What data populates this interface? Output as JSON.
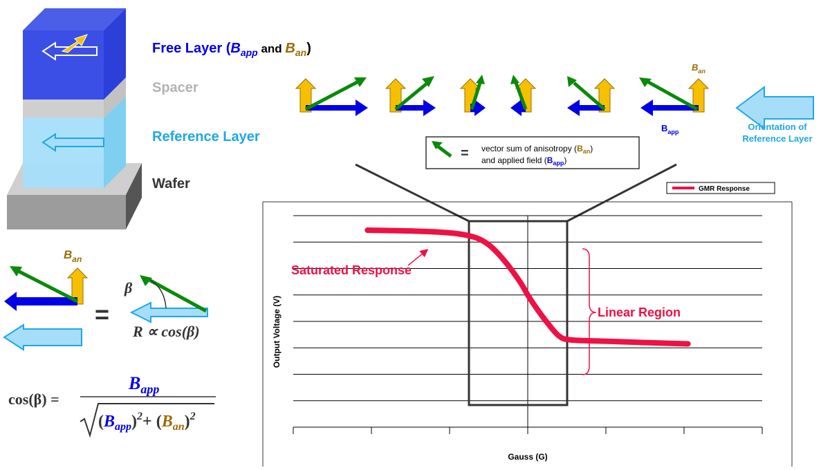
{
  "layers": {
    "free_layer_prefix": "Free Layer (",
    "free_layer_b1": "B",
    "free_layer_b1_sub": "app",
    "free_layer_and": " and ",
    "free_layer_b2": "B",
    "free_layer_b2_sub": "an",
    "free_layer_suffix": ")",
    "spacer": "Spacer",
    "reference": "Reference Layer",
    "wafer": "Wafer"
  },
  "vectors": {
    "ban_label": "B",
    "ban_sub": "an",
    "bapp_label": "B",
    "bapp_sub": "app",
    "orientation_line1": "Orientation of",
    "orientation_line2": "Reference Layer"
  },
  "legend_box": {
    "equals": "=",
    "line1": "vector sum of anisotropy (",
    "line1_b": "B",
    "line1_sub": "an",
    "line1_end": ")",
    "line2": "and applied field (",
    "line2_b": "B",
    "line2_sub": "app",
    "line2_end": ")"
  },
  "bottom_left": {
    "ban_label": "B",
    "ban_sub": "an",
    "equals": "=",
    "beta": "β",
    "resistance": "R ∝ cos(β)",
    "formula_lhs": "cos(β) =",
    "formula_num_b": "B",
    "formula_num_sub": "app",
    "formula_den_open": "(",
    "formula_den_b1": "B",
    "formula_den_sub1": "app",
    "formula_den_close1": ")",
    "formula_den_exp1": "2",
    "formula_den_plus": "+ (",
    "formula_den_b2": "B",
    "formula_den_sub2": "an",
    "formula_den_close2": ")",
    "formula_den_exp2": "2"
  },
  "chart": {
    "legend": "GMR Response",
    "xlabel": "Gauss (G)",
    "ylabel": "Output Voltage (V)",
    "annotation_saturated": "Saturated Response",
    "annotation_linear": "Linear Region"
  },
  "colors": {
    "blue": "#0000e6",
    "light_blue": "#1ea7e6",
    "gold": "#9c6b00",
    "green": "#0a8a0a",
    "red": "#ee1144",
    "gray": "#b3b3b3",
    "orange": "#f6c000"
  },
  "chart_data": {
    "type": "line",
    "title": "",
    "xlabel": "Gauss (G)",
    "ylabel": "Output Voltage (V)",
    "legend": "top-right",
    "grid": "horizontal",
    "series": [
      {
        "name": "GMR Response",
        "points": [
          [
            -2.05,
            5.45
          ],
          [
            -1.5,
            5.42
          ],
          [
            -1.0,
            5.35
          ],
          [
            -0.7,
            5.2
          ],
          [
            -0.5,
            4.9
          ],
          [
            -0.3,
            4.3
          ],
          [
            -0.1,
            3.5
          ],
          [
            0.0,
            3.0
          ],
          [
            0.1,
            2.55
          ],
          [
            0.25,
            1.95
          ],
          [
            0.4,
            1.45
          ],
          [
            0.55,
            1.3
          ],
          [
            1.0,
            1.25
          ],
          [
            1.5,
            1.2
          ],
          [
            2.05,
            1.15
          ]
        ]
      }
    ],
    "xlim": [
      -3,
      3
    ],
    "ylim": [
      -2,
      6
    ]
  }
}
